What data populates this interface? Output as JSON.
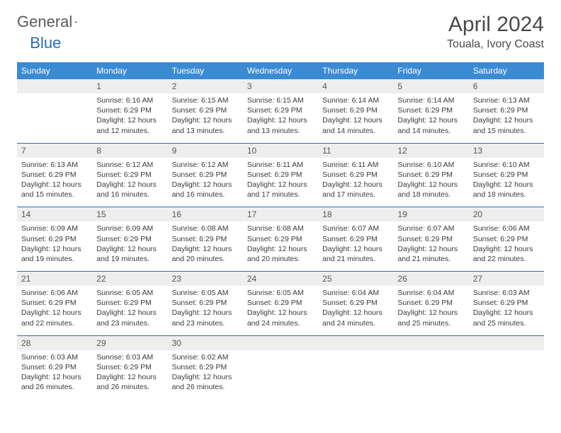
{
  "brand": {
    "word1": "General",
    "word2": "Blue"
  },
  "title": "April 2024",
  "location": "Touala, Ivory Coast",
  "colors": {
    "header_bg": "#3b8bd4",
    "header_text": "#ffffff",
    "daynum_bg": "#eeeeee",
    "border": "#2a6db8",
    "body_text": "#3a3a3a",
    "logo_grey": "#5a5a5a",
    "logo_blue": "#2a6db8",
    "page_bg": "#ffffff"
  },
  "day_names": [
    "Sunday",
    "Monday",
    "Tuesday",
    "Wednesday",
    "Thursday",
    "Friday",
    "Saturday"
  ],
  "weeks": [
    {
      "nums": [
        "",
        "1",
        "2",
        "3",
        "4",
        "5",
        "6"
      ],
      "cells": [
        {
          "sunrise": "",
          "sunset": "",
          "daylight": ""
        },
        {
          "sunrise": "Sunrise: 6:16 AM",
          "sunset": "Sunset: 6:29 PM",
          "daylight": "Daylight: 12 hours and 12 minutes."
        },
        {
          "sunrise": "Sunrise: 6:15 AM",
          "sunset": "Sunset: 6:29 PM",
          "daylight": "Daylight: 12 hours and 13 minutes."
        },
        {
          "sunrise": "Sunrise: 6:15 AM",
          "sunset": "Sunset: 6:29 PM",
          "daylight": "Daylight: 12 hours and 13 minutes."
        },
        {
          "sunrise": "Sunrise: 6:14 AM",
          "sunset": "Sunset: 6:29 PM",
          "daylight": "Daylight: 12 hours and 14 minutes."
        },
        {
          "sunrise": "Sunrise: 6:14 AM",
          "sunset": "Sunset: 6:29 PM",
          "daylight": "Daylight: 12 hours and 14 minutes."
        },
        {
          "sunrise": "Sunrise: 6:13 AM",
          "sunset": "Sunset: 6:29 PM",
          "daylight": "Daylight: 12 hours and 15 minutes."
        }
      ]
    },
    {
      "nums": [
        "7",
        "8",
        "9",
        "10",
        "11",
        "12",
        "13"
      ],
      "cells": [
        {
          "sunrise": "Sunrise: 6:13 AM",
          "sunset": "Sunset: 6:29 PM",
          "daylight": "Daylight: 12 hours and 15 minutes."
        },
        {
          "sunrise": "Sunrise: 6:12 AM",
          "sunset": "Sunset: 6:29 PM",
          "daylight": "Daylight: 12 hours and 16 minutes."
        },
        {
          "sunrise": "Sunrise: 6:12 AM",
          "sunset": "Sunset: 6:29 PM",
          "daylight": "Daylight: 12 hours and 16 minutes."
        },
        {
          "sunrise": "Sunrise: 6:11 AM",
          "sunset": "Sunset: 6:29 PM",
          "daylight": "Daylight: 12 hours and 17 minutes."
        },
        {
          "sunrise": "Sunrise: 6:11 AM",
          "sunset": "Sunset: 6:29 PM",
          "daylight": "Daylight: 12 hours and 17 minutes."
        },
        {
          "sunrise": "Sunrise: 6:10 AM",
          "sunset": "Sunset: 6:29 PM",
          "daylight": "Daylight: 12 hours and 18 minutes."
        },
        {
          "sunrise": "Sunrise: 6:10 AM",
          "sunset": "Sunset: 6:29 PM",
          "daylight": "Daylight: 12 hours and 18 minutes."
        }
      ]
    },
    {
      "nums": [
        "14",
        "15",
        "16",
        "17",
        "18",
        "19",
        "20"
      ],
      "cells": [
        {
          "sunrise": "Sunrise: 6:09 AM",
          "sunset": "Sunset: 6:29 PM",
          "daylight": "Daylight: 12 hours and 19 minutes."
        },
        {
          "sunrise": "Sunrise: 6:09 AM",
          "sunset": "Sunset: 6:29 PM",
          "daylight": "Daylight: 12 hours and 19 minutes."
        },
        {
          "sunrise": "Sunrise: 6:08 AM",
          "sunset": "Sunset: 6:29 PM",
          "daylight": "Daylight: 12 hours and 20 minutes."
        },
        {
          "sunrise": "Sunrise: 6:08 AM",
          "sunset": "Sunset: 6:29 PM",
          "daylight": "Daylight: 12 hours and 20 minutes."
        },
        {
          "sunrise": "Sunrise: 6:07 AM",
          "sunset": "Sunset: 6:29 PM",
          "daylight": "Daylight: 12 hours and 21 minutes."
        },
        {
          "sunrise": "Sunrise: 6:07 AM",
          "sunset": "Sunset: 6:29 PM",
          "daylight": "Daylight: 12 hours and 21 minutes."
        },
        {
          "sunrise": "Sunrise: 6:06 AM",
          "sunset": "Sunset: 6:29 PM",
          "daylight": "Daylight: 12 hours and 22 minutes."
        }
      ]
    },
    {
      "nums": [
        "21",
        "22",
        "23",
        "24",
        "25",
        "26",
        "27"
      ],
      "cells": [
        {
          "sunrise": "Sunrise: 6:06 AM",
          "sunset": "Sunset: 6:29 PM",
          "daylight": "Daylight: 12 hours and 22 minutes."
        },
        {
          "sunrise": "Sunrise: 6:05 AM",
          "sunset": "Sunset: 6:29 PM",
          "daylight": "Daylight: 12 hours and 23 minutes."
        },
        {
          "sunrise": "Sunrise: 6:05 AM",
          "sunset": "Sunset: 6:29 PM",
          "daylight": "Daylight: 12 hours and 23 minutes."
        },
        {
          "sunrise": "Sunrise: 6:05 AM",
          "sunset": "Sunset: 6:29 PM",
          "daylight": "Daylight: 12 hours and 24 minutes."
        },
        {
          "sunrise": "Sunrise: 6:04 AM",
          "sunset": "Sunset: 6:29 PM",
          "daylight": "Daylight: 12 hours and 24 minutes."
        },
        {
          "sunrise": "Sunrise: 6:04 AM",
          "sunset": "Sunset: 6:29 PM",
          "daylight": "Daylight: 12 hours and 25 minutes."
        },
        {
          "sunrise": "Sunrise: 6:03 AM",
          "sunset": "Sunset: 6:29 PM",
          "daylight": "Daylight: 12 hours and 25 minutes."
        }
      ]
    },
    {
      "nums": [
        "28",
        "29",
        "30",
        "",
        "",
        "",
        ""
      ],
      "cells": [
        {
          "sunrise": "Sunrise: 6:03 AM",
          "sunset": "Sunset: 6:29 PM",
          "daylight": "Daylight: 12 hours and 26 minutes."
        },
        {
          "sunrise": "Sunrise: 6:03 AM",
          "sunset": "Sunset: 6:29 PM",
          "daylight": "Daylight: 12 hours and 26 minutes."
        },
        {
          "sunrise": "Sunrise: 6:02 AM",
          "sunset": "Sunset: 6:29 PM",
          "daylight": "Daylight: 12 hours and 26 minutes."
        },
        {
          "sunrise": "",
          "sunset": "",
          "daylight": ""
        },
        {
          "sunrise": "",
          "sunset": "",
          "daylight": ""
        },
        {
          "sunrise": "",
          "sunset": "",
          "daylight": ""
        },
        {
          "sunrise": "",
          "sunset": "",
          "daylight": ""
        }
      ]
    }
  ]
}
